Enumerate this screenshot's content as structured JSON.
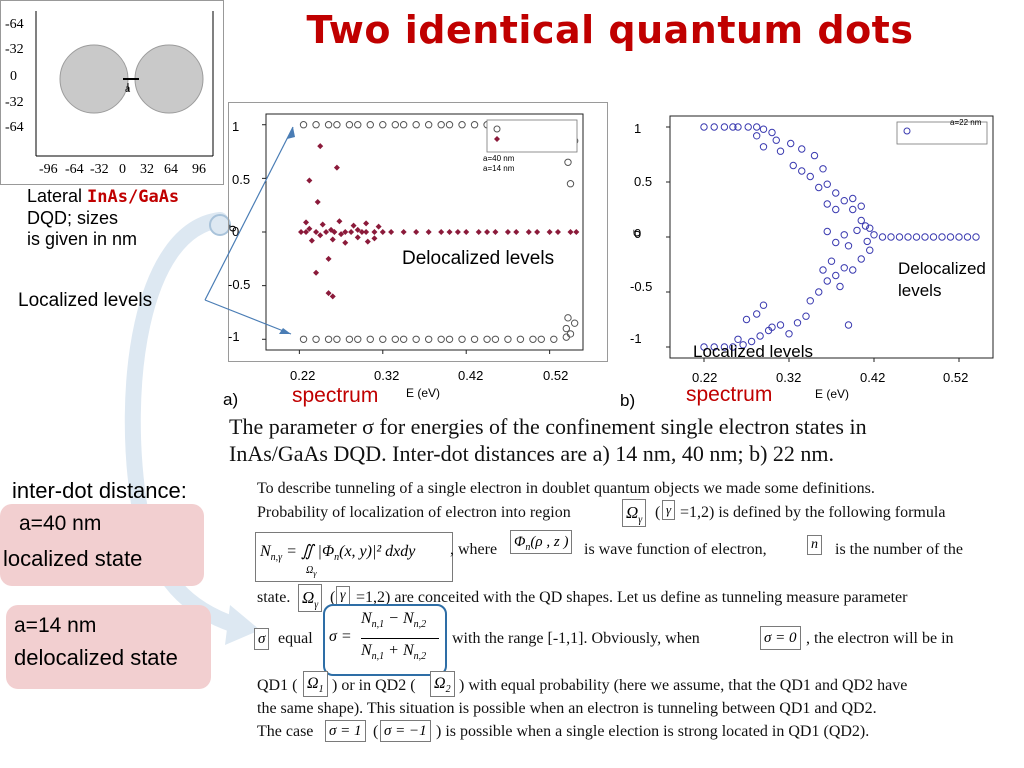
{
  "title": "Two identical quantum dots",
  "inset": {
    "y_ticks": [
      "-64",
      "-32",
      "0",
      "-32",
      "-64"
    ],
    "x_ticks": [
      "-96",
      "-64",
      "-32",
      "0",
      "32",
      "64",
      "96"
    ],
    "gap_label": "a"
  },
  "inset_caption": {
    "line1_prefix": "Lateral ",
    "material": "InAs/GaAs",
    "line2": "DQD; sizes",
    "line3": "is given in nm"
  },
  "localized_levels_left": "Localized levels",
  "plot_a": {
    "panel_label": "a)",
    "annotation": "Delocalized levels",
    "spectrum_label": "spectrum",
    "xlabel": "E (eV)",
    "ylabel": "σ",
    "legend": [
      "a=40 nm",
      "a=14 nm"
    ]
  },
  "plot_b": {
    "panel_label": "b)",
    "annotation_line1": "Delocalized",
    "annotation_line2": "levels",
    "localized_label": "Localized levels",
    "spectrum_label": "spectrum",
    "xlabel": "E (eV)",
    "ylabel": "σ",
    "legend": [
      "a=22 nm"
    ]
  },
  "figure_caption": {
    "line1": "The parameter σ for energies of the confinement single electron states in",
    "line2": "InAs/GaAs  DQD. Inter-dot distances are a) 14 nm, 40 nm; b) 22 nm."
  },
  "interdot": {
    "heading": "inter-dot distance:",
    "box1_line1": "a=40 nm",
    "box1_line2": "localized state",
    "box2_line1": "a=14 nm",
    "box2_line2": "delocalized state"
  },
  "paragraph": {
    "l1": "To describe tunneling of a single electron in doublet quantum objects we made some definitions.",
    "l2a": "Probability of localization of electron into region",
    "l2b": "=1,2) is defined by the following formula",
    "l3a": ", where",
    "l3b": "is wave function of electron,",
    "l3c": "is the number of the",
    "l4a": "state.",
    "l4b": "=1,2) are conceited with the QD shapes. Let us define as tunneling measure parameter",
    "l5a": "equal",
    "l5b": "with the range [-1,1]. Obviously, when",
    "l5c": ", the electron will be in",
    "l6a": "QD1 (",
    "l6b": ") or in QD2 (",
    "l6c": ") with equal probability (here we assume, that the QD1 and QD2 have",
    "l7": "the same shape). This situation is possible when an electron is tunneling between QD1 and QD2.",
    "l8a": "The case",
    "l8b": "(",
    "l8c": ") is possible when a single election is strong located in QD1 (QD2)."
  },
  "chart_data": [
    {
      "type": "scatter",
      "xlabel": "E (eV)",
      "ylabel": "σ",
      "xlim": [
        0.18,
        0.56
      ],
      "ylim": [
        -1.1,
        1.1
      ],
      "x_ticks": [
        0.22,
        0.32,
        0.42,
        0.52
      ],
      "y_ticks": [
        1.0,
        0.5,
        0.0,
        -0.5,
        -1.0
      ],
      "legend_position": "top-right",
      "series": [
        {
          "name": "a=40 nm",
          "marker": "open-circle",
          "color": "#555555",
          "points": [
            [
              0.225,
              1
            ],
            [
              0.225,
              -1
            ],
            [
              0.24,
              1
            ],
            [
              0.24,
              -1
            ],
            [
              0.255,
              1
            ],
            [
              0.255,
              -1
            ],
            [
              0.265,
              1
            ],
            [
              0.265,
              -1
            ],
            [
              0.28,
              1
            ],
            [
              0.28,
              -1
            ],
            [
              0.29,
              1
            ],
            [
              0.29,
              -1
            ],
            [
              0.305,
              1
            ],
            [
              0.305,
              -1
            ],
            [
              0.32,
              1
            ],
            [
              0.32,
              -1
            ],
            [
              0.335,
              1
            ],
            [
              0.335,
              -1
            ],
            [
              0.345,
              1
            ],
            [
              0.345,
              -1
            ],
            [
              0.36,
              1
            ],
            [
              0.36,
              -1
            ],
            [
              0.375,
              1
            ],
            [
              0.375,
              -1
            ],
            [
              0.39,
              1
            ],
            [
              0.39,
              -1
            ],
            [
              0.4,
              1
            ],
            [
              0.4,
              -1
            ],
            [
              0.415,
              1
            ],
            [
              0.415,
              -1
            ],
            [
              0.43,
              1
            ],
            [
              0.43,
              -1
            ],
            [
              0.445,
              1
            ],
            [
              0.445,
              -1
            ],
            [
              0.455,
              1
            ],
            [
              0.455,
              -1
            ],
            [
              0.47,
              1
            ],
            [
              0.47,
              -1
            ],
            [
              0.485,
              1
            ],
            [
              0.485,
              -1
            ],
            [
              0.5,
              1
            ],
            [
              0.5,
              -1
            ],
            [
              0.51,
              1
            ],
            [
              0.51,
              -1
            ],
            [
              0.525,
              1
            ],
            [
              0.525,
              -1
            ],
            [
              0.54,
              0.98
            ],
            [
              0.54,
              0.9
            ],
            [
              0.542,
              0.65
            ],
            [
              0.545,
              0.45
            ],
            [
              0.55,
              0.85
            ],
            [
              0.54,
              -0.98
            ],
            [
              0.54,
              -0.9
            ],
            [
              0.542,
              -0.8
            ],
            [
              0.545,
              -0.95
            ],
            [
              0.55,
              -0.85
            ]
          ]
        },
        {
          "name": "a=14 nm",
          "marker": "filled-diamond",
          "color": "#8b1a3a",
          "points": [
            [
              0.222,
              0
            ],
            [
              0.228,
              0
            ],
            [
              0.232,
              0.03
            ],
            [
              0.24,
              0
            ],
            [
              0.245,
              -0.03
            ],
            [
              0.252,
              0
            ],
            [
              0.258,
              0.02
            ],
            [
              0.262,
              0
            ],
            [
              0.27,
              -0.02
            ],
            [
              0.275,
              0
            ],
            [
              0.282,
              0
            ],
            [
              0.29,
              0.02
            ],
            [
              0.295,
              0
            ],
            [
              0.3,
              0
            ],
            [
              0.31,
              0
            ],
            [
              0.32,
              0
            ],
            [
              0.33,
              0
            ],
            [
              0.345,
              0
            ],
            [
              0.36,
              0
            ],
            [
              0.375,
              0
            ],
            [
              0.39,
              0
            ],
            [
              0.4,
              0
            ],
            [
              0.41,
              0
            ],
            [
              0.42,
              0
            ],
            [
              0.435,
              0
            ],
            [
              0.445,
              0
            ],
            [
              0.455,
              0
            ],
            [
              0.47,
              0
            ],
            [
              0.48,
              0
            ],
            [
              0.495,
              0
            ],
            [
              0.505,
              0
            ],
            [
              0.52,
              0
            ],
            [
              0.53,
              0
            ],
            [
              0.545,
              0
            ],
            [
              0.552,
              0
            ],
            [
              0.228,
              0.09
            ],
            [
              0.235,
              -0.08
            ],
            [
              0.248,
              0.07
            ],
            [
              0.26,
              -0.07
            ],
            [
              0.268,
              0.1
            ],
            [
              0.275,
              -0.1
            ],
            [
              0.285,
              0.06
            ],
            [
              0.29,
              -0.05
            ],
            [
              0.3,
              0.08
            ],
            [
              0.302,
              -0.09
            ],
            [
              0.315,
              0.05
            ],
            [
              0.31,
              -0.06
            ],
            [
              0.245,
              0.8
            ],
            [
              0.232,
              0.48
            ],
            [
              0.265,
              0.6
            ],
            [
              0.242,
              0.28
            ],
            [
              0.255,
              -0.25
            ],
            [
              0.24,
              -0.38
            ],
            [
              0.255,
              -0.57
            ],
            [
              0.26,
              -0.6
            ]
          ]
        }
      ]
    },
    {
      "type": "scatter",
      "xlabel": "E (eV)",
      "ylabel": "σ",
      "xlim": [
        0.18,
        0.56
      ],
      "ylim": [
        -1.1,
        1.1
      ],
      "x_ticks": [
        0.22,
        0.32,
        0.42,
        0.52
      ],
      "y_ticks": [
        1.0,
        0.5,
        0.0,
        -0.5,
        -1.0
      ],
      "legend_position": "top-right",
      "series": [
        {
          "name": "a=22 nm",
          "marker": "open-circle",
          "color": "#3a3ab0",
          "points": [
            [
              0.22,
              1
            ],
            [
              0.232,
              1
            ],
            [
              0.244,
              1
            ],
            [
              0.254,
              1
            ],
            [
              0.26,
              1
            ],
            [
              0.272,
              1
            ],
            [
              0.282,
              1
            ],
            [
              0.29,
              0.98
            ],
            [
              0.3,
              0.95
            ],
            [
              0.282,
              0.92
            ],
            [
              0.305,
              0.88
            ],
            [
              0.29,
              0.82
            ],
            [
              0.31,
              0.78
            ],
            [
              0.322,
              0.85
            ],
            [
              0.335,
              0.8
            ],
            [
              0.35,
              0.74
            ],
            [
              0.36,
              0.62
            ],
            [
              0.365,
              0.48
            ],
            [
              0.375,
              0.4
            ],
            [
              0.385,
              0.33
            ],
            [
              0.395,
              0.25
            ],
            [
              0.405,
              0.15
            ],
            [
              0.415,
              0.08
            ],
            [
              0.325,
              0.65
            ],
            [
              0.335,
              0.6
            ],
            [
              0.345,
              0.55
            ],
            [
              0.355,
              0.45
            ],
            [
              0.365,
              0.3
            ],
            [
              0.375,
              0.25
            ],
            [
              0.395,
              0.35
            ],
            [
              0.405,
              0.28
            ],
            [
              0.41,
              0.1
            ],
            [
              0.42,
              0.02
            ],
            [
              0.43,
              0
            ],
            [
              0.44,
              0
            ],
            [
              0.45,
              0
            ],
            [
              0.46,
              0
            ],
            [
              0.47,
              0
            ],
            [
              0.48,
              0
            ],
            [
              0.49,
              0
            ],
            [
              0.5,
              0
            ],
            [
              0.51,
              0
            ],
            [
              0.52,
              0
            ],
            [
              0.53,
              0
            ],
            [
              0.54,
              0
            ],
            [
              0.365,
              0.05
            ],
            [
              0.375,
              -0.05
            ],
            [
              0.385,
              0.02
            ],
            [
              0.39,
              -0.08
            ],
            [
              0.4,
              0.06
            ],
            [
              0.412,
              -0.04
            ],
            [
              0.22,
              -1
            ],
            [
              0.232,
              -1
            ],
            [
              0.244,
              -1
            ],
            [
              0.254,
              -1
            ],
            [
              0.266,
              -0.98
            ],
            [
              0.276,
              -0.95
            ],
            [
              0.286,
              -0.9
            ],
            [
              0.296,
              -0.85
            ],
            [
              0.26,
              -0.93
            ],
            [
              0.27,
              -0.75
            ],
            [
              0.282,
              -0.7
            ],
            [
              0.29,
              -0.62
            ],
            [
              0.3,
              -0.82
            ],
            [
              0.31,
              -0.8
            ],
            [
              0.32,
              -0.88
            ],
            [
              0.33,
              -0.78
            ],
            [
              0.34,
              -0.72
            ],
            [
              0.345,
              -0.58
            ],
            [
              0.355,
              -0.5
            ],
            [
              0.365,
              -0.4
            ],
            [
              0.375,
              -0.35
            ],
            [
              0.385,
              -0.28
            ],
            [
              0.395,
              -0.3
            ],
            [
              0.405,
              -0.2
            ],
            [
              0.415,
              -0.12
            ],
            [
              0.36,
              -0.3
            ],
            [
              0.37,
              -0.22
            ],
            [
              0.38,
              -0.45
            ],
            [
              0.39,
              -0.8
            ]
          ]
        }
      ]
    }
  ]
}
